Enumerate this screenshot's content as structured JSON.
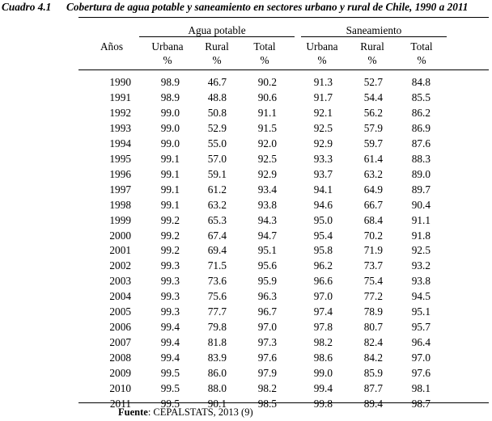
{
  "caption": {
    "number": "Cuadro 4.1",
    "title": "Cobertura de agua potable y saneamiento en sectores urbano y rural de Chile, 1990 a 2011"
  },
  "header": {
    "years_label": "Años",
    "group_water": "Agua potable",
    "group_sanitation": "Saneamiento",
    "col_urban": "Urbana",
    "col_rural": "Rural",
    "col_total": "Total",
    "unit": "%"
  },
  "rows": [
    {
      "year": "1990",
      "w_urb": "98.9",
      "w_rur": "46.7",
      "w_tot": "90.2",
      "s_urb": "91.3",
      "s_rur": "52.7",
      "s_tot": "84.8"
    },
    {
      "year": "1991",
      "w_urb": "98.9",
      "w_rur": "48.8",
      "w_tot": "90.6",
      "s_urb": "91.7",
      "s_rur": "54.4",
      "s_tot": "85.5"
    },
    {
      "year": "1992",
      "w_urb": "99.0",
      "w_rur": "50.8",
      "w_tot": "91.1",
      "s_urb": "92.1",
      "s_rur": "56.2",
      "s_tot": "86.2"
    },
    {
      "year": "1993",
      "w_urb": "99.0",
      "w_rur": "52.9",
      "w_tot": "91.5",
      "s_urb": "92.5",
      "s_rur": "57.9",
      "s_tot": "86.9"
    },
    {
      "year": "1994",
      "w_urb": "99.0",
      "w_rur": "55.0",
      "w_tot": "92.0",
      "s_urb": "92.9",
      "s_rur": "59.7",
      "s_tot": "87.6"
    },
    {
      "year": "1995",
      "w_urb": "99.1",
      "w_rur": "57.0",
      "w_tot": "92.5",
      "s_urb": "93.3",
      "s_rur": "61.4",
      "s_tot": "88.3"
    },
    {
      "year": "1996",
      "w_urb": "99.1",
      "w_rur": "59.1",
      "w_tot": "92.9",
      "s_urb": "93.7",
      "s_rur": "63.2",
      "s_tot": "89.0"
    },
    {
      "year": "1997",
      "w_urb": "99.1",
      "w_rur": "61.2",
      "w_tot": "93.4",
      "s_urb": "94.1",
      "s_rur": "64.9",
      "s_tot": "89.7"
    },
    {
      "year": "1998",
      "w_urb": "99.1",
      "w_rur": "63.2",
      "w_tot": "93.8",
      "s_urb": "94.6",
      "s_rur": "66.7",
      "s_tot": "90.4"
    },
    {
      "year": "1999",
      "w_urb": "99.2",
      "w_rur": "65.3",
      "w_tot": "94.3",
      "s_urb": "95.0",
      "s_rur": "68.4",
      "s_tot": "91.1"
    },
    {
      "year": "2000",
      "w_urb": "99.2",
      "w_rur": "67.4",
      "w_tot": "94.7",
      "s_urb": "95.4",
      "s_rur": "70.2",
      "s_tot": "91.8"
    },
    {
      "year": "2001",
      "w_urb": "99.2",
      "w_rur": "69.4",
      "w_tot": "95.1",
      "s_urb": "95.8",
      "s_rur": "71.9",
      "s_tot": "92.5"
    },
    {
      "year": "2002",
      "w_urb": "99.3",
      "w_rur": "71.5",
      "w_tot": "95.6",
      "s_urb": "96.2",
      "s_rur": "73.7",
      "s_tot": "93.2"
    },
    {
      "year": "2003",
      "w_urb": "99.3",
      "w_rur": "73.6",
      "w_tot": "95.9",
      "s_urb": "96.6",
      "s_rur": "75.4",
      "s_tot": "93.8"
    },
    {
      "year": "2004",
      "w_urb": "99.3",
      "w_rur": "75.6",
      "w_tot": "96.3",
      "s_urb": "97.0",
      "s_rur": "77.2",
      "s_tot": "94.5"
    },
    {
      "year": "2005",
      "w_urb": "99.3",
      "w_rur": "77.7",
      "w_tot": "96.7",
      "s_urb": "97.4",
      "s_rur": "78.9",
      "s_tot": "95.1"
    },
    {
      "year": "2006",
      "w_urb": "99.4",
      "w_rur": "79.8",
      "w_tot": "97.0",
      "s_urb": "97.8",
      "s_rur": "80.7",
      "s_tot": "95.7"
    },
    {
      "year": "2007",
      "w_urb": "99.4",
      "w_rur": "81.8",
      "w_tot": "97.3",
      "s_urb": "98.2",
      "s_rur": "82.4",
      "s_tot": "96.4"
    },
    {
      "year": "2008",
      "w_urb": "99.4",
      "w_rur": "83.9",
      "w_tot": "97.6",
      "s_urb": "98.6",
      "s_rur": "84.2",
      "s_tot": "97.0"
    },
    {
      "year": "2009",
      "w_urb": "99.5",
      "w_rur": "86.0",
      "w_tot": "97.9",
      "s_urb": "99.0",
      "s_rur": "85.9",
      "s_tot": "97.6"
    },
    {
      "year": "2010",
      "w_urb": "99.5",
      "w_rur": "88.0",
      "w_tot": "98.2",
      "s_urb": "99.4",
      "s_rur": "87.7",
      "s_tot": "98.1"
    },
    {
      "year": "2011",
      "w_urb": "99.5",
      "w_rur": "90.1",
      "w_tot": "98.5",
      "s_urb": "99.8",
      "s_rur": "89.4",
      "s_tot": "98.7"
    }
  ],
  "source": {
    "label": "Fuente",
    "text": ": CEPALSTATS, 2013 (9)"
  }
}
